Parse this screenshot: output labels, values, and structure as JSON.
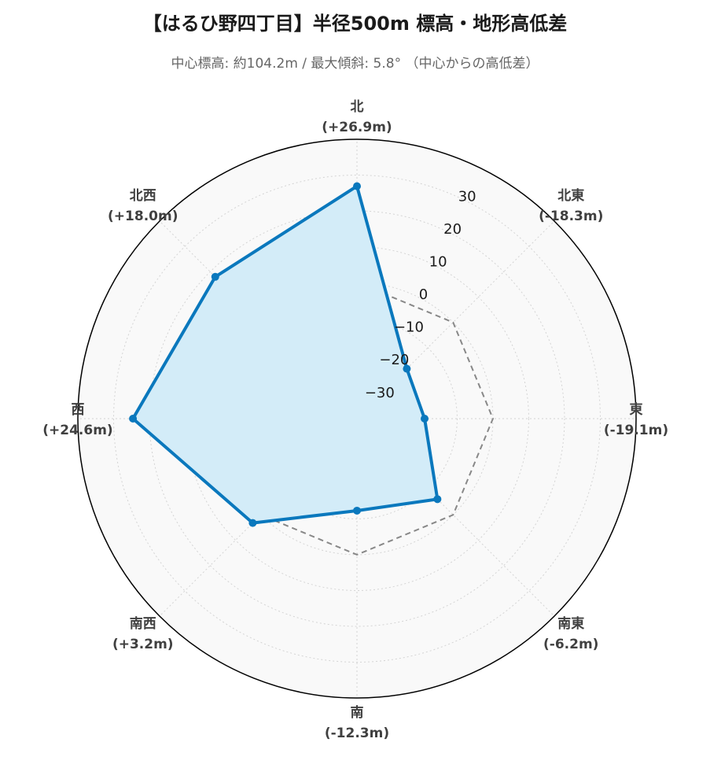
{
  "title": "【はるひ野四丁目】半径500m 標高・地形高低差",
  "subtitle": "中心標高: 約104.2m / 最大傾斜: 5.8° （中心からの高低差）",
  "chart_data": {
    "type": "radar",
    "title": "【はるひ野四丁目】半径500m 標高・地形高低差",
    "subtitle": "中心標高: 約104.2m / 最大傾斜: 5.8° （中心からの高低差）",
    "directions": [
      "北",
      "北東",
      "東",
      "南東",
      "南",
      "南西",
      "西",
      "北西"
    ],
    "direction_labels": [
      "(+26.9m)",
      "(-18.3m)",
      "(-19.1m)",
      "(-6.2m)",
      "(-12.3m)",
      "(+3.2m)",
      "(+24.6m)",
      "(+18.0m)"
    ],
    "series": [
      {
        "values": [
          26.9,
          -18.3,
          -19.1,
          -6.2,
          -12.3,
          3.2,
          24.6,
          18.0
        ],
        "color": "#0a78bd",
        "fill": "#d3ecf8"
      }
    ],
    "reference": {
      "value": 0,
      "style": "dashed",
      "color": "#888888"
    },
    "radial_range": [
      -38,
      40
    ],
    "radial_ticks": [
      -30,
      -20,
      -10,
      0,
      10,
      20,
      30
    ],
    "grid": true
  }
}
